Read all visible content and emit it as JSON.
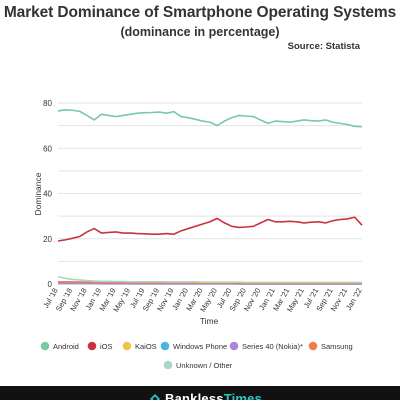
{
  "chart_data": {
    "type": "line",
    "title": "Market Dominance of Smartphone Operating Systems",
    "subtitle": "(dominance in percentage)",
    "source": "Source: Statista",
    "xlabel": "Time",
    "ylabel": "Dominance",
    "ylim": [
      0,
      80
    ],
    "yticks": [
      0,
      10,
      20,
      30,
      40,
      50,
      60,
      70,
      80
    ],
    "grid": true,
    "legend_position": "bottom",
    "tick_labels": [
      "Jul '18",
      "Sep '18",
      "Nov '18",
      "Jan '19",
      "Mar '19",
      "May '19",
      "Jul '19",
      "Sep '19",
      "Nov '19",
      "Jan '20",
      "Mar '20",
      "May '20",
      "Jul '20",
      "Sep '20",
      "Nov '20",
      "Jan '21",
      "Mar '21",
      "May '21",
      "Jul '21",
      "Sep '21",
      "Nov '21",
      "Jan '22"
    ],
    "x": [
      "Jul '18",
      "Aug '18",
      "Sep '18",
      "Oct '18",
      "Nov '18",
      "Dec '18",
      "Jan '19",
      "Feb '19",
      "Mar '19",
      "Apr '19",
      "May '19",
      "Jun '19",
      "Jul '19",
      "Aug '19",
      "Sep '19",
      "Oct '19",
      "Nov '19",
      "Dec '19",
      "Jan '20",
      "Feb '20",
      "Mar '20",
      "Apr '20",
      "May '20",
      "Jun '20",
      "Jul '20",
      "Aug '20",
      "Sep '20",
      "Oct '20",
      "Nov '20",
      "Dec '20",
      "Jan '21",
      "Feb '21",
      "Mar '21",
      "Apr '21",
      "May '21",
      "Jun '21",
      "Jul '21",
      "Aug '21",
      "Sep '21",
      "Oct '21",
      "Nov '21",
      "Dec '21",
      "Jan '22"
    ],
    "series": [
      {
        "name": "Android",
        "color": "#79c9a3",
        "values": [
          76.5,
          77.0,
          76.8,
          76.3,
          74.5,
          72.5,
          75.0,
          74.5,
          74.0,
          74.5,
          75.0,
          75.5,
          75.7,
          75.8,
          76.0,
          75.5,
          76.2,
          74.0,
          73.5,
          72.8,
          72.0,
          71.5,
          70.0,
          72.0,
          73.5,
          74.5,
          74.2,
          74.0,
          72.5,
          71.0,
          72.0,
          71.8,
          71.5,
          72.0,
          72.5,
          72.2,
          72.0,
          72.5,
          71.5,
          71.0,
          70.5,
          69.7,
          69.5
        ]
      },
      {
        "name": "iOS",
        "color": "#c9343c",
        "values": [
          19.0,
          19.5,
          20.2,
          21.0,
          23.0,
          24.5,
          22.5,
          22.8,
          23.0,
          22.5,
          22.5,
          22.3,
          22.2,
          22.0,
          22.0,
          22.3,
          22.0,
          23.5,
          24.5,
          25.5,
          26.5,
          27.5,
          29.0,
          27.0,
          25.5,
          25.0,
          25.2,
          25.5,
          27.0,
          28.5,
          27.5,
          27.5,
          27.7,
          27.5,
          27.0,
          27.3,
          27.5,
          27.0,
          28.0,
          28.5,
          28.8,
          29.5,
          26.0
        ]
      },
      {
        "name": "KaiOS",
        "color": "#f2c24d",
        "values": [
          0.6,
          0.6,
          0.6,
          0.7,
          0.7,
          0.6,
          0.5,
          0.5,
          0.5,
          0.4,
          0.4,
          0.4,
          0.3,
          0.3,
          0.3,
          0.3,
          0.3,
          0.3,
          0.2,
          0.2,
          0.2,
          0.2,
          0.2,
          0.2,
          0.2,
          0.1,
          0.1,
          0.1,
          0.1,
          0.1,
          0.1,
          0.1,
          0.1,
          0.1,
          0.1,
          0.1,
          0.1,
          0.1,
          0.1,
          0.1,
          0.1,
          0.1,
          0.1
        ]
      },
      {
        "name": "Windows Phone",
        "color": "#4bb3e0",
        "values": [
          0.3,
          0.3,
          0.3,
          0.3,
          0.2,
          0.2,
          0.2,
          0.2,
          0.2,
          0.2,
          0.1,
          0.1,
          0.1,
          0.1,
          0.1,
          0.1,
          0.1,
          0.1,
          0.1,
          0.1,
          0.1,
          0.1,
          0.1,
          0.1,
          0.1,
          0.0,
          0.0,
          0.0,
          0.0,
          0.0,
          0.0,
          0.0,
          0.0,
          0.0,
          0.0,
          0.0,
          0.0,
          0.0,
          0.0,
          0.0,
          0.0,
          0.0,
          0.0
        ]
      },
      {
        "name": "Series 40 (Nokia)*",
        "color": "#ab86d6",
        "values": [
          0.2,
          0.2,
          0.2,
          0.2,
          0.2,
          0.2,
          0.1,
          0.1,
          0.1,
          0.1,
          0.1,
          0.1,
          0.1,
          0.1,
          0.1,
          0.1,
          0.1,
          0.1,
          0.1,
          0.1,
          0.1,
          0.1,
          0.1,
          0.1,
          0.1,
          0.1,
          0.0,
          0.0,
          0.0,
          0.0,
          0.0,
          0.0,
          0.0,
          0.0,
          0.0,
          0.0,
          0.0,
          0.0,
          0.0,
          0.0,
          0.0,
          0.0,
          0.0
        ]
      },
      {
        "name": "Samsung",
        "color": "#f07d4b",
        "values": [
          1.0,
          1.0,
          0.9,
          0.9,
          0.8,
          0.8,
          0.8,
          0.7,
          0.7,
          0.7,
          0.6,
          0.6,
          0.6,
          0.6,
          0.5,
          0.5,
          0.5,
          0.5,
          0.5,
          0.4,
          0.4,
          0.4,
          0.4,
          0.4,
          0.4,
          0.4,
          0.3,
          0.3,
          0.3,
          0.3,
          0.3,
          0.3,
          0.3,
          0.3,
          0.3,
          0.3,
          0.3,
          0.3,
          0.3,
          0.3,
          0.3,
          0.3,
          0.3
        ]
      },
      {
        "name": "Unknown / Other",
        "color": "#a8d8bf",
        "values": [
          3.2,
          2.5,
          2.0,
          1.8,
          1.5,
          1.3,
          1.2,
          1.2,
          1.1,
          1.1,
          1.0,
          1.0,
          1.0,
          1.0,
          1.0,
          0.9,
          0.9,
          0.9,
          0.9,
          0.9,
          0.8,
          0.8,
          0.8,
          0.8,
          0.8,
          0.8,
          0.7,
          0.7,
          0.7,
          0.7,
          0.7,
          0.7,
          0.7,
          0.7,
          0.7,
          0.7,
          0.7,
          0.7,
          0.7,
          0.7,
          0.7,
          0.7,
          0.7
        ]
      }
    ]
  },
  "footer": {
    "brand_part1": "Bankless",
    "brand_part2": "Times"
  }
}
